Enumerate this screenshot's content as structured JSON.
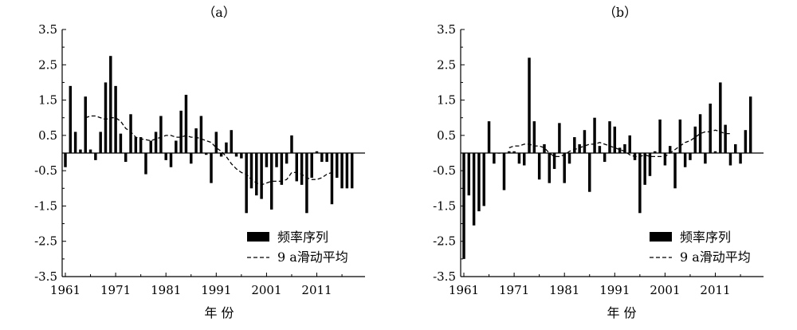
{
  "chart_data": [
    {
      "type": "bar",
      "title": "（a）",
      "xlabel": "年 份",
      "ylabel": "",
      "ylim": [
        -3.5,
        3.5
      ],
      "yticks": [
        "3.5",
        "2.5",
        "1.5",
        "0.5",
        "-0.5",
        "-1.5",
        "-2.5",
        "-3.5"
      ],
      "xticks": [
        "1961",
        "1971",
        "1981",
        "1991",
        "2001",
        "2011"
      ],
      "x": [
        1961,
        1962,
        1963,
        1964,
        1965,
        1966,
        1967,
        1968,
        1969,
        1970,
        1971,
        1972,
        1973,
        1974,
        1975,
        1976,
        1977,
        1978,
        1979,
        1980,
        1981,
        1982,
        1983,
        1984,
        1985,
        1986,
        1987,
        1988,
        1989,
        1990,
        1991,
        1992,
        1993,
        1994,
        1995,
        1996,
        1997,
        1998,
        1999,
        2000,
        2001,
        2002,
        2003,
        2004,
        2005,
        2006,
        2007,
        2008,
        2009,
        2010,
        2011,
        2012,
        2013,
        2014,
        2015,
        2016,
        2017,
        2018
      ],
      "series": [
        {
          "name": "频率序列",
          "values": [
            -0.4,
            1.9,
            0.6,
            0.1,
            1.6,
            0.1,
            -0.2,
            0.6,
            2.0,
            2.75,
            1.9,
            0.55,
            -0.25,
            1.1,
            0.45,
            0.45,
            -0.6,
            0.35,
            0.6,
            1.05,
            -0.2,
            -0.4,
            0.35,
            1.2,
            1.65,
            -0.3,
            0.7,
            1.05,
            -0.05,
            -0.85,
            0.6,
            -0.1,
            0.3,
            0.65,
            -0.1,
            -0.15,
            -1.7,
            -1.0,
            -1.2,
            -1.3,
            -0.4,
            -1.6,
            -0.4,
            -0.9,
            -0.3,
            0.5,
            -0.8,
            -0.9,
            -1.7,
            -0.7,
            0.05,
            -0.25,
            -0.25,
            -1.45,
            -0.7,
            -1.0,
            -1.0,
            -1.0
          ]
        },
        {
          "name": "9 a滑动平均",
          "values": [
            null,
            null,
            null,
            null,
            1.0,
            1.05,
            1.05,
            1.0,
            0.95,
            1.0,
            1.0,
            0.9,
            0.7,
            0.6,
            0.45,
            0.4,
            0.38,
            0.35,
            0.4,
            0.45,
            0.5,
            0.5,
            0.45,
            0.45,
            0.5,
            0.45,
            0.45,
            0.4,
            0.35,
            0.3,
            0.15,
            0.05,
            -0.1,
            -0.3,
            -0.45,
            -0.55,
            -0.6,
            -0.75,
            -0.85,
            -0.9,
            -0.85,
            -0.8,
            -0.8,
            -0.8,
            -0.75,
            -0.55,
            -0.55,
            -0.6,
            -0.7,
            -0.75,
            -0.75,
            -0.7,
            -0.6,
            -0.55,
            null,
            null,
            null,
            null
          ]
        }
      ],
      "legend": {
        "position": "bottom-right",
        "entries": [
          "频率序列",
          "9 a滑动平均"
        ]
      },
      "grid": false
    },
    {
      "type": "bar",
      "title": "（b）",
      "xlabel": "年 份",
      "ylabel": "",
      "ylim": [
        -3.5,
        3.5
      ],
      "yticks": [
        "3.5",
        "2.5",
        "1.5",
        "0.5",
        "-0.5",
        "-1.5",
        "-2.5",
        "-3.5"
      ],
      "xticks": [
        "1961",
        "1971",
        "1981",
        "1991",
        "2001",
        "2011"
      ],
      "x": [
        1961,
        1962,
        1963,
        1964,
        1965,
        1966,
        1967,
        1968,
        1969,
        1970,
        1971,
        1972,
        1973,
        1974,
        1975,
        1976,
        1977,
        1978,
        1979,
        1980,
        1981,
        1982,
        1983,
        1984,
        1985,
        1986,
        1987,
        1988,
        1989,
        1990,
        1991,
        1992,
        1993,
        1994,
        1995,
        1996,
        1997,
        1998,
        1999,
        2000,
        2001,
        2002,
        2003,
        2004,
        2005,
        2006,
        2007,
        2008,
        2009,
        2010,
        2011,
        2012,
        2013,
        2014,
        2015,
        2016,
        2017,
        2018
      ],
      "series": [
        {
          "name": "频率序列",
          "values": [
            -3.0,
            -1.2,
            -2.05,
            -1.65,
            -1.5,
            0.9,
            -0.3,
            0.0,
            -1.05,
            0.05,
            0.05,
            -0.3,
            -0.35,
            2.7,
            0.9,
            -0.75,
            0.25,
            -0.85,
            -0.45,
            0.85,
            -0.85,
            -0.3,
            0.45,
            0.25,
            0.65,
            -1.1,
            1.0,
            0.2,
            -0.25,
            0.9,
            0.75,
            0.15,
            0.25,
            0.5,
            -0.2,
            -1.7,
            -0.9,
            -0.65,
            0.05,
            0.95,
            -0.35,
            0.2,
            -1.0,
            0.95,
            -0.4,
            -0.2,
            0.75,
            1.1,
            -0.3,
            1.4,
            0.05,
            2.0,
            0.8,
            -0.35,
            0.25,
            -0.3,
            0.65,
            1.6
          ]
        },
        {
          "name": "9 a滑动平均",
          "values": [
            null,
            null,
            null,
            null,
            null,
            null,
            null,
            null,
            null,
            0.15,
            0.2,
            0.2,
            0.25,
            0.25,
            0.2,
            0.2,
            0.15,
            0.0,
            -0.1,
            -0.1,
            -0.05,
            0.05,
            0.1,
            0.15,
            0.2,
            0.25,
            0.25,
            0.3,
            0.25,
            0.2,
            0.15,
            0.1,
            0.05,
            -0.05,
            -0.1,
            -0.1,
            -0.05,
            -0.1,
            -0.1,
            -0.1,
            -0.1,
            0.0,
            0.1,
            0.2,
            0.3,
            0.35,
            0.45,
            0.55,
            0.6,
            0.6,
            0.65,
            0.6,
            0.55,
            0.55,
            null,
            null,
            null,
            null
          ]
        }
      ],
      "legend": {
        "position": "bottom-right",
        "entries": [
          "频率序列",
          "9 a滑动平均"
        ]
      },
      "grid": false
    }
  ]
}
